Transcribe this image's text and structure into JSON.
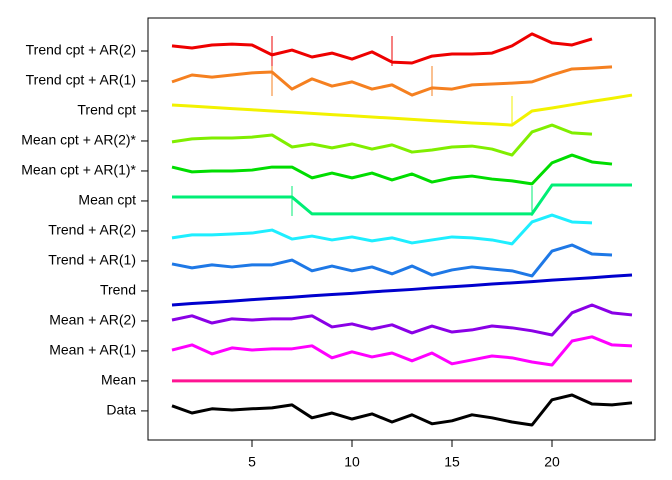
{
  "chart_data": {
    "type": "line",
    "x": [
      1,
      2,
      3,
      4,
      5,
      6,
      7,
      8,
      9,
      10,
      11,
      12,
      13,
      14,
      15,
      16,
      17,
      18,
      19,
      20,
      21,
      22,
      23,
      24
    ],
    "xlim": [
      -0.2,
      25.15
    ],
    "xticks": [
      5,
      10,
      15,
      20
    ],
    "ylim": [
      0.03,
      14.1
    ],
    "yticks": [
      {
        "value": 1,
        "label": "Data"
      },
      {
        "value": 2,
        "label": "Mean"
      },
      {
        "value": 3,
        "label": "Mean + AR(1)"
      },
      {
        "value": 4,
        "label": "Mean + AR(2)"
      },
      {
        "value": 5,
        "label": "Trend"
      },
      {
        "value": 6,
        "label": "Trend + AR(1)"
      },
      {
        "value": 7,
        "label": "Trend + AR(2)"
      },
      {
        "value": 8,
        "label": "Mean cpt"
      },
      {
        "value": 9,
        "label": "Mean cpt + AR(1)*"
      },
      {
        "value": 10,
        "label": "Mean cpt + AR(2)*"
      },
      {
        "value": 11,
        "label": "Trend cpt"
      },
      {
        "value": 12,
        "label": "Trend cpt + AR(1)"
      },
      {
        "value": 13,
        "label": "Trend cpt + AR(2)"
      }
    ],
    "series": [
      {
        "color": "#000000",
        "values": [
          1.17,
          0.93,
          1.07,
          1.03,
          1.07,
          1.1,
          1.2,
          0.77,
          0.93,
          0.73,
          0.9,
          0.63,
          0.87,
          0.57,
          0.67,
          0.87,
          0.77,
          0.63,
          0.53,
          1.37,
          1.53,
          1.23,
          1.2,
          1.27
        ]
      },
      {
        "color": "#FF1493",
        "values": [
          2,
          2,
          2,
          2,
          2,
          2,
          2,
          2,
          2,
          2,
          2,
          2,
          2,
          2,
          2,
          2,
          2,
          2,
          2,
          2,
          2,
          2,
          2,
          2
        ]
      },
      {
        "color": "#FF00FF",
        "values": [
          3.03,
          3.2,
          2.9,
          3.1,
          3.03,
          3.07,
          3.07,
          3.17,
          2.77,
          2.97,
          2.8,
          2.93,
          2.67,
          2.93,
          2.57,
          2.7,
          2.83,
          2.77,
          2.63,
          2.53,
          3.33,
          3.47,
          3.2,
          3.17
        ]
      },
      {
        "color": "#8A00E6",
        "values": [
          4.03,
          4.17,
          3.93,
          4.07,
          4.03,
          4.07,
          4.07,
          4.17,
          3.8,
          3.9,
          3.73,
          3.87,
          3.6,
          3.83,
          3.63,
          3.7,
          3.83,
          3.77,
          3.67,
          3.53,
          4.27,
          4.53,
          4.27,
          4.2
        ]
      },
      {
        "color": "#0000CD",
        "values": [
          4.53,
          4.58,
          4.62,
          4.66,
          4.71,
          4.75,
          4.79,
          4.84,
          4.88,
          4.92,
          4.97,
          5.01,
          5.05,
          5.1,
          5.14,
          5.18,
          5.23,
          5.27,
          5.31,
          5.36,
          5.4,
          5.44,
          5.49,
          5.53
        ]
      },
      {
        "color": "#1E78E6",
        "values": [
          5.9,
          5.77,
          5.87,
          5.8,
          5.87,
          5.87,
          6.03,
          5.67,
          5.83,
          5.67,
          5.8,
          5.57,
          5.83,
          5.53,
          5.7,
          5.8,
          5.73,
          5.67,
          5.5,
          6.33,
          6.53,
          6.23,
          6.2,
          null
        ]
      },
      {
        "color": "#1EEEFF",
        "values": [
          6.77,
          6.87,
          6.87,
          6.9,
          6.93,
          7.03,
          6.73,
          6.83,
          6.7,
          6.8,
          6.67,
          6.77,
          6.6,
          6.7,
          6.8,
          6.77,
          6.7,
          6.57,
          7.3,
          7.53,
          7.3,
          7.27,
          null,
          null
        ]
      },
      {
        "color": "#00EE76",
        "values": [
          8.13,
          8.13,
          8.13,
          8.13,
          8.13,
          8.13,
          8.13,
          7.57,
          7.57,
          7.57,
          7.57,
          7.57,
          7.57,
          7.57,
          7.57,
          7.57,
          7.57,
          7.57,
          7.57,
          8.53,
          8.53,
          8.53,
          8.53,
          8.53
        ],
        "changepoints": [
          7,
          19
        ]
      },
      {
        "color": "#00DD00",
        "values": [
          9.13,
          8.97,
          9.0,
          9.0,
          9.03,
          9.13,
          9.13,
          8.77,
          8.93,
          8.77,
          8.93,
          8.7,
          8.9,
          8.63,
          8.77,
          8.83,
          8.73,
          8.67,
          8.57,
          9.27,
          9.53,
          9.3,
          9.23,
          null
        ]
      },
      {
        "color": "#80EE00",
        "values": [
          9.97,
          10.07,
          10.1,
          10.1,
          10.13,
          10.2,
          9.8,
          9.9,
          9.77,
          9.9,
          9.73,
          9.87,
          9.63,
          9.7,
          9.8,
          9.83,
          9.73,
          9.53,
          10.3,
          10.53,
          10.27,
          10.23,
          null,
          null
        ]
      },
      {
        "color": "#F2F200",
        "values": [
          11.2,
          11.16,
          11.12,
          11.08,
          11.04,
          11.0,
          10.96,
          10.92,
          10.88,
          10.84,
          10.8,
          10.76,
          10.72,
          10.68,
          10.64,
          10.6,
          10.57,
          10.53,
          11.0,
          11.1,
          11.21,
          11.32,
          11.42,
          11.53
        ],
        "changepoints": [
          18
        ]
      },
      {
        "color": "#F58020",
        "values": [
          11.97,
          12.2,
          12.13,
          12.2,
          12.27,
          12.3,
          11.73,
          12.07,
          11.83,
          11.97,
          11.73,
          11.87,
          11.53,
          11.77,
          11.73,
          11.87,
          11.9,
          11.93,
          11.97,
          12.2,
          12.4,
          12.43,
          12.47,
          null
        ],
        "changepoints": [
          6,
          14
        ]
      },
      {
        "color": "#EE0000",
        "values": [
          13.17,
          13.1,
          13.2,
          13.23,
          13.2,
          12.87,
          13.03,
          12.8,
          12.93,
          12.73,
          12.97,
          12.63,
          12.6,
          12.83,
          12.9,
          12.9,
          12.93,
          13.17,
          13.57,
          13.27,
          13.2,
          13.4,
          null,
          null
        ],
        "changepoints": [
          6,
          12
        ]
      }
    ]
  }
}
